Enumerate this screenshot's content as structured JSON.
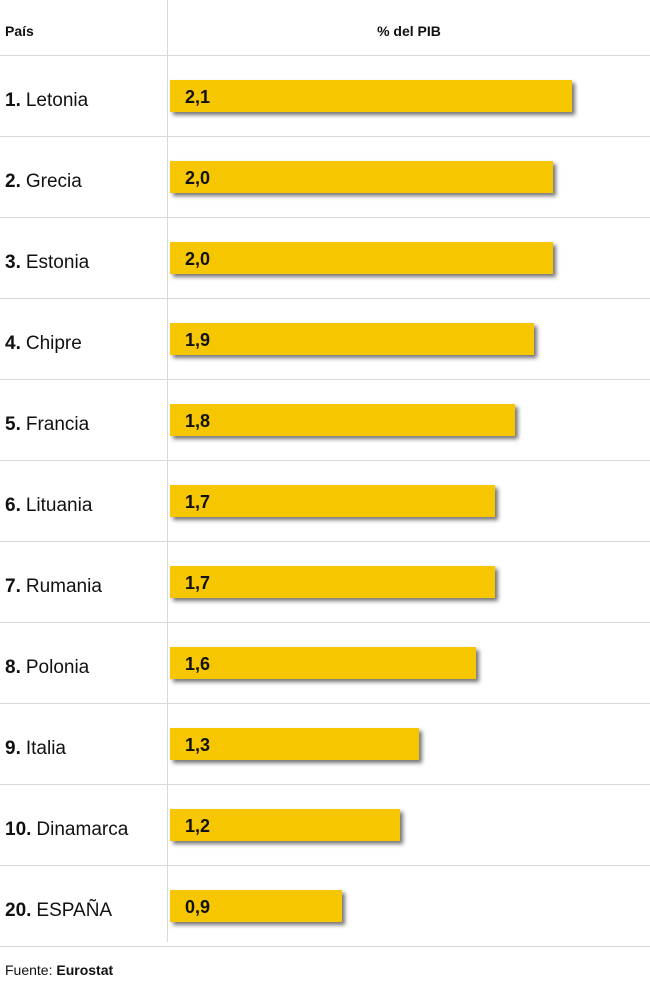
{
  "header": {
    "country_label": "País",
    "value_label": "% del PIB"
  },
  "chart_data": {
    "type": "bar",
    "orientation": "horizontal",
    "categories": [
      "Letonia",
      "Grecia",
      "Estonia",
      "Chipre",
      "Francia",
      "Lituania",
      "Rumania",
      "Polonia",
      "Italia",
      "Dinamarca",
      "ESPAÑA"
    ],
    "ranks": [
      "1.",
      "2.",
      "3.",
      "4.",
      "5.",
      "6.",
      "7.",
      "8.",
      "9.",
      "10.",
      "20."
    ],
    "values": [
      2.1,
      2.0,
      2.0,
      1.9,
      1.8,
      1.7,
      1.7,
      1.6,
      1.3,
      1.2,
      0.9
    ],
    "value_labels": [
      "2,1",
      "2,0",
      "2,0",
      "1,9",
      "1,8",
      "1,7",
      "1,7",
      "1,6",
      "1,3",
      "1,2",
      "0,9"
    ],
    "xlim": [
      0,
      2.1
    ],
    "bar_color": "#f6c700",
    "grid": false
  },
  "footer": {
    "source_prefix": "Fuente:",
    "source_name": "Eurostat"
  }
}
